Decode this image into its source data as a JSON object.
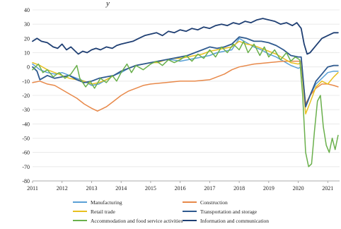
{
  "chart_data": {
    "type": "line",
    "title": "",
    "ylabel_fragment": "y",
    "x_ticks": [
      "2011",
      "2012",
      "2013",
      "2014",
      "2015",
      "2016",
      "2017",
      "2018",
      "2019",
      "2020",
      "2021"
    ],
    "y_ticks": [
      "40",
      "30",
      "20",
      "10",
      "0",
      "-10",
      "-20",
      "-30",
      "-40",
      "-50",
      "-60",
      "-70",
      "-80"
    ],
    "ylim": [
      -80,
      40
    ],
    "xlim": [
      2011.0,
      2021.4
    ],
    "grid": "horizontal",
    "legend_position": "bottom",
    "series": [
      {
        "name": "Manufacturing",
        "color": "#5aa0d6",
        "points": [
          [
            2011.0,
            2
          ],
          [
            2011.25,
            -2
          ],
          [
            2011.5,
            -4
          ],
          [
            2011.75,
            -5
          ],
          [
            2012.0,
            -4
          ],
          [
            2012.25,
            -6
          ],
          [
            2012.5,
            -8
          ],
          [
            2012.75,
            -10
          ],
          [
            2013.0,
            -13
          ],
          [
            2013.25,
            -12
          ],
          [
            2013.5,
            -9
          ],
          [
            2013.75,
            -6
          ],
          [
            2014.0,
            -4
          ],
          [
            2014.25,
            -1
          ],
          [
            2014.5,
            1
          ],
          [
            2014.75,
            2
          ],
          [
            2015.0,
            3
          ],
          [
            2015.25,
            4
          ],
          [
            2015.5,
            5
          ],
          [
            2015.75,
            5
          ],
          [
            2016.0,
            4
          ],
          [
            2016.25,
            5
          ],
          [
            2016.5,
            6
          ],
          [
            2016.75,
            7
          ],
          [
            2017.0,
            8
          ],
          [
            2017.25,
            10
          ],
          [
            2017.5,
            11
          ],
          [
            2017.75,
            12
          ],
          [
            2018.0,
            20
          ],
          [
            2018.25,
            17
          ],
          [
            2018.5,
            14
          ],
          [
            2018.75,
            12
          ],
          [
            2019.0,
            9
          ],
          [
            2019.25,
            7
          ],
          [
            2019.5,
            4
          ],
          [
            2019.75,
            1
          ],
          [
            2020.0,
            -1
          ],
          [
            2020.1,
            0
          ],
          [
            2020.25,
            -28
          ],
          [
            2020.4,
            -20
          ],
          [
            2020.6,
            -12
          ],
          [
            2020.8,
            -8
          ],
          [
            2021.0,
            -4
          ],
          [
            2021.2,
            -3
          ],
          [
            2021.35,
            -3
          ]
        ]
      },
      {
        "name": "Construction",
        "color": "#e8894a",
        "points": [
          [
            2011.0,
            -11
          ],
          [
            2011.25,
            -10
          ],
          [
            2011.5,
            -12
          ],
          [
            2011.75,
            -13
          ],
          [
            2012.0,
            -16
          ],
          [
            2012.25,
            -19
          ],
          [
            2012.5,
            -22
          ],
          [
            2012.75,
            -26
          ],
          [
            2013.0,
            -29
          ],
          [
            2013.2,
            -31
          ],
          [
            2013.5,
            -28
          ],
          [
            2013.75,
            -24
          ],
          [
            2014.0,
            -20
          ],
          [
            2014.25,
            -17
          ],
          [
            2014.5,
            -15
          ],
          [
            2014.75,
            -13
          ],
          [
            2015.0,
            -12
          ],
          [
            2015.5,
            -11
          ],
          [
            2016.0,
            -10
          ],
          [
            2016.5,
            -10
          ],
          [
            2017.0,
            -9
          ],
          [
            2017.25,
            -7
          ],
          [
            2017.5,
            -5
          ],
          [
            2017.75,
            -2
          ],
          [
            2018.0,
            0
          ],
          [
            2018.5,
            2
          ],
          [
            2019.0,
            3
          ],
          [
            2019.5,
            4
          ],
          [
            2020.0,
            4
          ],
          [
            2020.1,
            4
          ],
          [
            2020.25,
            -26
          ],
          [
            2020.4,
            -20
          ],
          [
            2020.6,
            -15
          ],
          [
            2020.8,
            -12
          ],
          [
            2021.0,
            -12
          ],
          [
            2021.2,
            -13
          ],
          [
            2021.35,
            -14
          ]
        ]
      },
      {
        "name": "Retail trade",
        "color": "#e8c020",
        "points": [
          [
            2011.0,
            3
          ],
          [
            2011.25,
            1
          ],
          [
            2011.5,
            -2
          ],
          [
            2011.75,
            -4
          ],
          [
            2012.0,
            -6
          ],
          [
            2012.25,
            -8
          ],
          [
            2012.5,
            -9
          ],
          [
            2012.75,
            -10
          ],
          [
            2013.0,
            -12
          ],
          [
            2013.25,
            -11
          ],
          [
            2013.5,
            -9
          ],
          [
            2013.75,
            -6
          ],
          [
            2014.0,
            -3
          ],
          [
            2014.25,
            -1
          ],
          [
            2014.5,
            1
          ],
          [
            2014.75,
            2
          ],
          [
            2015.0,
            3
          ],
          [
            2015.25,
            3
          ],
          [
            2015.5,
            5
          ],
          [
            2015.75,
            6
          ],
          [
            2016.0,
            6
          ],
          [
            2016.25,
            7
          ],
          [
            2016.5,
            8
          ],
          [
            2016.75,
            9
          ],
          [
            2017.0,
            11
          ],
          [
            2017.25,
            12
          ],
          [
            2017.5,
            13
          ],
          [
            2017.75,
            14
          ],
          [
            2018.0,
            18
          ],
          [
            2018.25,
            16
          ],
          [
            2018.5,
            15
          ],
          [
            2018.75,
            13
          ],
          [
            2019.0,
            11
          ],
          [
            2019.25,
            9
          ],
          [
            2019.5,
            6
          ],
          [
            2019.75,
            3
          ],
          [
            2020.0,
            2
          ],
          [
            2020.1,
            3
          ],
          [
            2020.25,
            -33
          ],
          [
            2020.4,
            -25
          ],
          [
            2020.6,
            -14
          ],
          [
            2020.8,
            -10
          ],
          [
            2021.0,
            -12
          ],
          [
            2021.2,
            -7
          ],
          [
            2021.35,
            -4
          ]
        ]
      },
      {
        "name": "Transportation and storage",
        "color": "#2f5a8f",
        "points": [
          [
            2011.0,
            0
          ],
          [
            2011.15,
            -3
          ],
          [
            2011.25,
            -9
          ],
          [
            2011.5,
            -6
          ],
          [
            2011.75,
            -8
          ],
          [
            2012.0,
            -7
          ],
          [
            2012.25,
            -6
          ],
          [
            2012.5,
            -9
          ],
          [
            2012.75,
            -11
          ],
          [
            2013.0,
            -10
          ],
          [
            2013.25,
            -8
          ],
          [
            2013.5,
            -7
          ],
          [
            2013.75,
            -6
          ],
          [
            2014.0,
            -3
          ],
          [
            2014.25,
            -1
          ],
          [
            2014.5,
            1
          ],
          [
            2014.75,
            2
          ],
          [
            2015.0,
            3
          ],
          [
            2015.25,
            4
          ],
          [
            2015.5,
            5
          ],
          [
            2015.75,
            6
          ],
          [
            2016.0,
            7
          ],
          [
            2016.25,
            8
          ],
          [
            2016.5,
            10
          ],
          [
            2016.75,
            12
          ],
          [
            2017.0,
            14
          ],
          [
            2017.25,
            13
          ],
          [
            2017.5,
            14
          ],
          [
            2017.75,
            16
          ],
          [
            2018.0,
            21
          ],
          [
            2018.25,
            20
          ],
          [
            2018.5,
            18
          ],
          [
            2018.75,
            18
          ],
          [
            2019.0,
            17
          ],
          [
            2019.25,
            15
          ],
          [
            2019.5,
            12
          ],
          [
            2019.75,
            8
          ],
          [
            2020.0,
            7
          ],
          [
            2020.1,
            7
          ],
          [
            2020.25,
            -28
          ],
          [
            2020.4,
            -20
          ],
          [
            2020.6,
            -10
          ],
          [
            2020.8,
            -5
          ],
          [
            2021.0,
            0
          ],
          [
            2021.2,
            1
          ],
          [
            2021.35,
            1
          ]
        ]
      },
      {
        "name": "Accommodation and food service activities",
        "color": "#6ab04c",
        "points": [
          [
            2011.0,
            -2
          ],
          [
            2011.2,
            2
          ],
          [
            2011.35,
            -4
          ],
          [
            2011.5,
            -2
          ],
          [
            2011.7,
            -7
          ],
          [
            2011.9,
            -4
          ],
          [
            2012.1,
            -8
          ],
          [
            2012.3,
            -5
          ],
          [
            2012.5,
            1
          ],
          [
            2012.6,
            -8
          ],
          [
            2012.8,
            -14
          ],
          [
            2012.95,
            -10
          ],
          [
            2013.1,
            -15
          ],
          [
            2013.3,
            -8
          ],
          [
            2013.5,
            -11
          ],
          [
            2013.7,
            -6
          ],
          [
            2013.85,
            -10
          ],
          [
            2014.0,
            -4
          ],
          [
            2014.2,
            2
          ],
          [
            2014.35,
            -4
          ],
          [
            2014.5,
            1
          ],
          [
            2014.75,
            -2
          ],
          [
            2015.0,
            2
          ],
          [
            2015.2,
            4
          ],
          [
            2015.4,
            1
          ],
          [
            2015.6,
            5
          ],
          [
            2015.8,
            3
          ],
          [
            2016.0,
            5
          ],
          [
            2016.2,
            8
          ],
          [
            2016.4,
            4
          ],
          [
            2016.6,
            9
          ],
          [
            2016.8,
            6
          ],
          [
            2017.0,
            12
          ],
          [
            2017.2,
            7
          ],
          [
            2017.4,
            14
          ],
          [
            2017.6,
            10
          ],
          [
            2017.8,
            16
          ],
          [
            2018.0,
            12
          ],
          [
            2018.15,
            18
          ],
          [
            2018.3,
            10
          ],
          [
            2018.5,
            16
          ],
          [
            2018.7,
            8
          ],
          [
            2018.85,
            14
          ],
          [
            2019.0,
            7
          ],
          [
            2019.2,
            12
          ],
          [
            2019.4,
            5
          ],
          [
            2019.6,
            10
          ],
          [
            2019.75,
            4
          ],
          [
            2019.9,
            7
          ],
          [
            2020.05,
            5
          ],
          [
            2020.15,
            -20
          ],
          [
            2020.25,
            -60
          ],
          [
            2020.35,
            -70
          ],
          [
            2020.45,
            -68
          ],
          [
            2020.55,
            -45
          ],
          [
            2020.65,
            -24
          ],
          [
            2020.75,
            -20
          ],
          [
            2020.85,
            -42
          ],
          [
            2020.95,
            -55
          ],
          [
            2021.05,
            -60
          ],
          [
            2021.15,
            -50
          ],
          [
            2021.25,
            -58
          ],
          [
            2021.35,
            -48
          ]
        ]
      },
      {
        "name": "Information and communication",
        "color": "#1f3f73",
        "points": [
          [
            2011.0,
            18
          ],
          [
            2011.15,
            20
          ],
          [
            2011.3,
            18
          ],
          [
            2011.5,
            17
          ],
          [
            2011.7,
            14
          ],
          [
            2011.85,
            13
          ],
          [
            2012.0,
            16
          ],
          [
            2012.15,
            12
          ],
          [
            2012.3,
            14
          ],
          [
            2012.45,
            11
          ],
          [
            2012.55,
            9
          ],
          [
            2012.7,
            11
          ],
          [
            2012.85,
            10
          ],
          [
            2013.0,
            12
          ],
          [
            2013.15,
            13
          ],
          [
            2013.3,
            12
          ],
          [
            2013.5,
            14
          ],
          [
            2013.7,
            13
          ],
          [
            2013.85,
            15
          ],
          [
            2014.0,
            16
          ],
          [
            2014.2,
            17
          ],
          [
            2014.4,
            18
          ],
          [
            2014.6,
            20
          ],
          [
            2014.8,
            22
          ],
          [
            2015.0,
            23
          ],
          [
            2015.2,
            24
          ],
          [
            2015.4,
            22
          ],
          [
            2015.6,
            25
          ],
          [
            2015.8,
            24
          ],
          [
            2016.0,
            26
          ],
          [
            2016.2,
            25
          ],
          [
            2016.4,
            27
          ],
          [
            2016.6,
            26
          ],
          [
            2016.8,
            28
          ],
          [
            2017.0,
            27
          ],
          [
            2017.2,
            29
          ],
          [
            2017.4,
            30
          ],
          [
            2017.6,
            29
          ],
          [
            2017.8,
            31
          ],
          [
            2018.0,
            30
          ],
          [
            2018.2,
            32
          ],
          [
            2018.4,
            31
          ],
          [
            2018.6,
            33
          ],
          [
            2018.8,
            34
          ],
          [
            2019.0,
            33
          ],
          [
            2019.2,
            32
          ],
          [
            2019.4,
            30
          ],
          [
            2019.6,
            31
          ],
          [
            2019.8,
            29
          ],
          [
            2019.95,
            31
          ],
          [
            2020.1,
            27
          ],
          [
            2020.2,
            16
          ],
          [
            2020.3,
            9
          ],
          [
            2020.4,
            10
          ],
          [
            2020.6,
            15
          ],
          [
            2020.8,
            20
          ],
          [
            2021.0,
            22
          ],
          [
            2021.2,
            24
          ],
          [
            2021.35,
            24
          ]
        ]
      }
    ]
  }
}
